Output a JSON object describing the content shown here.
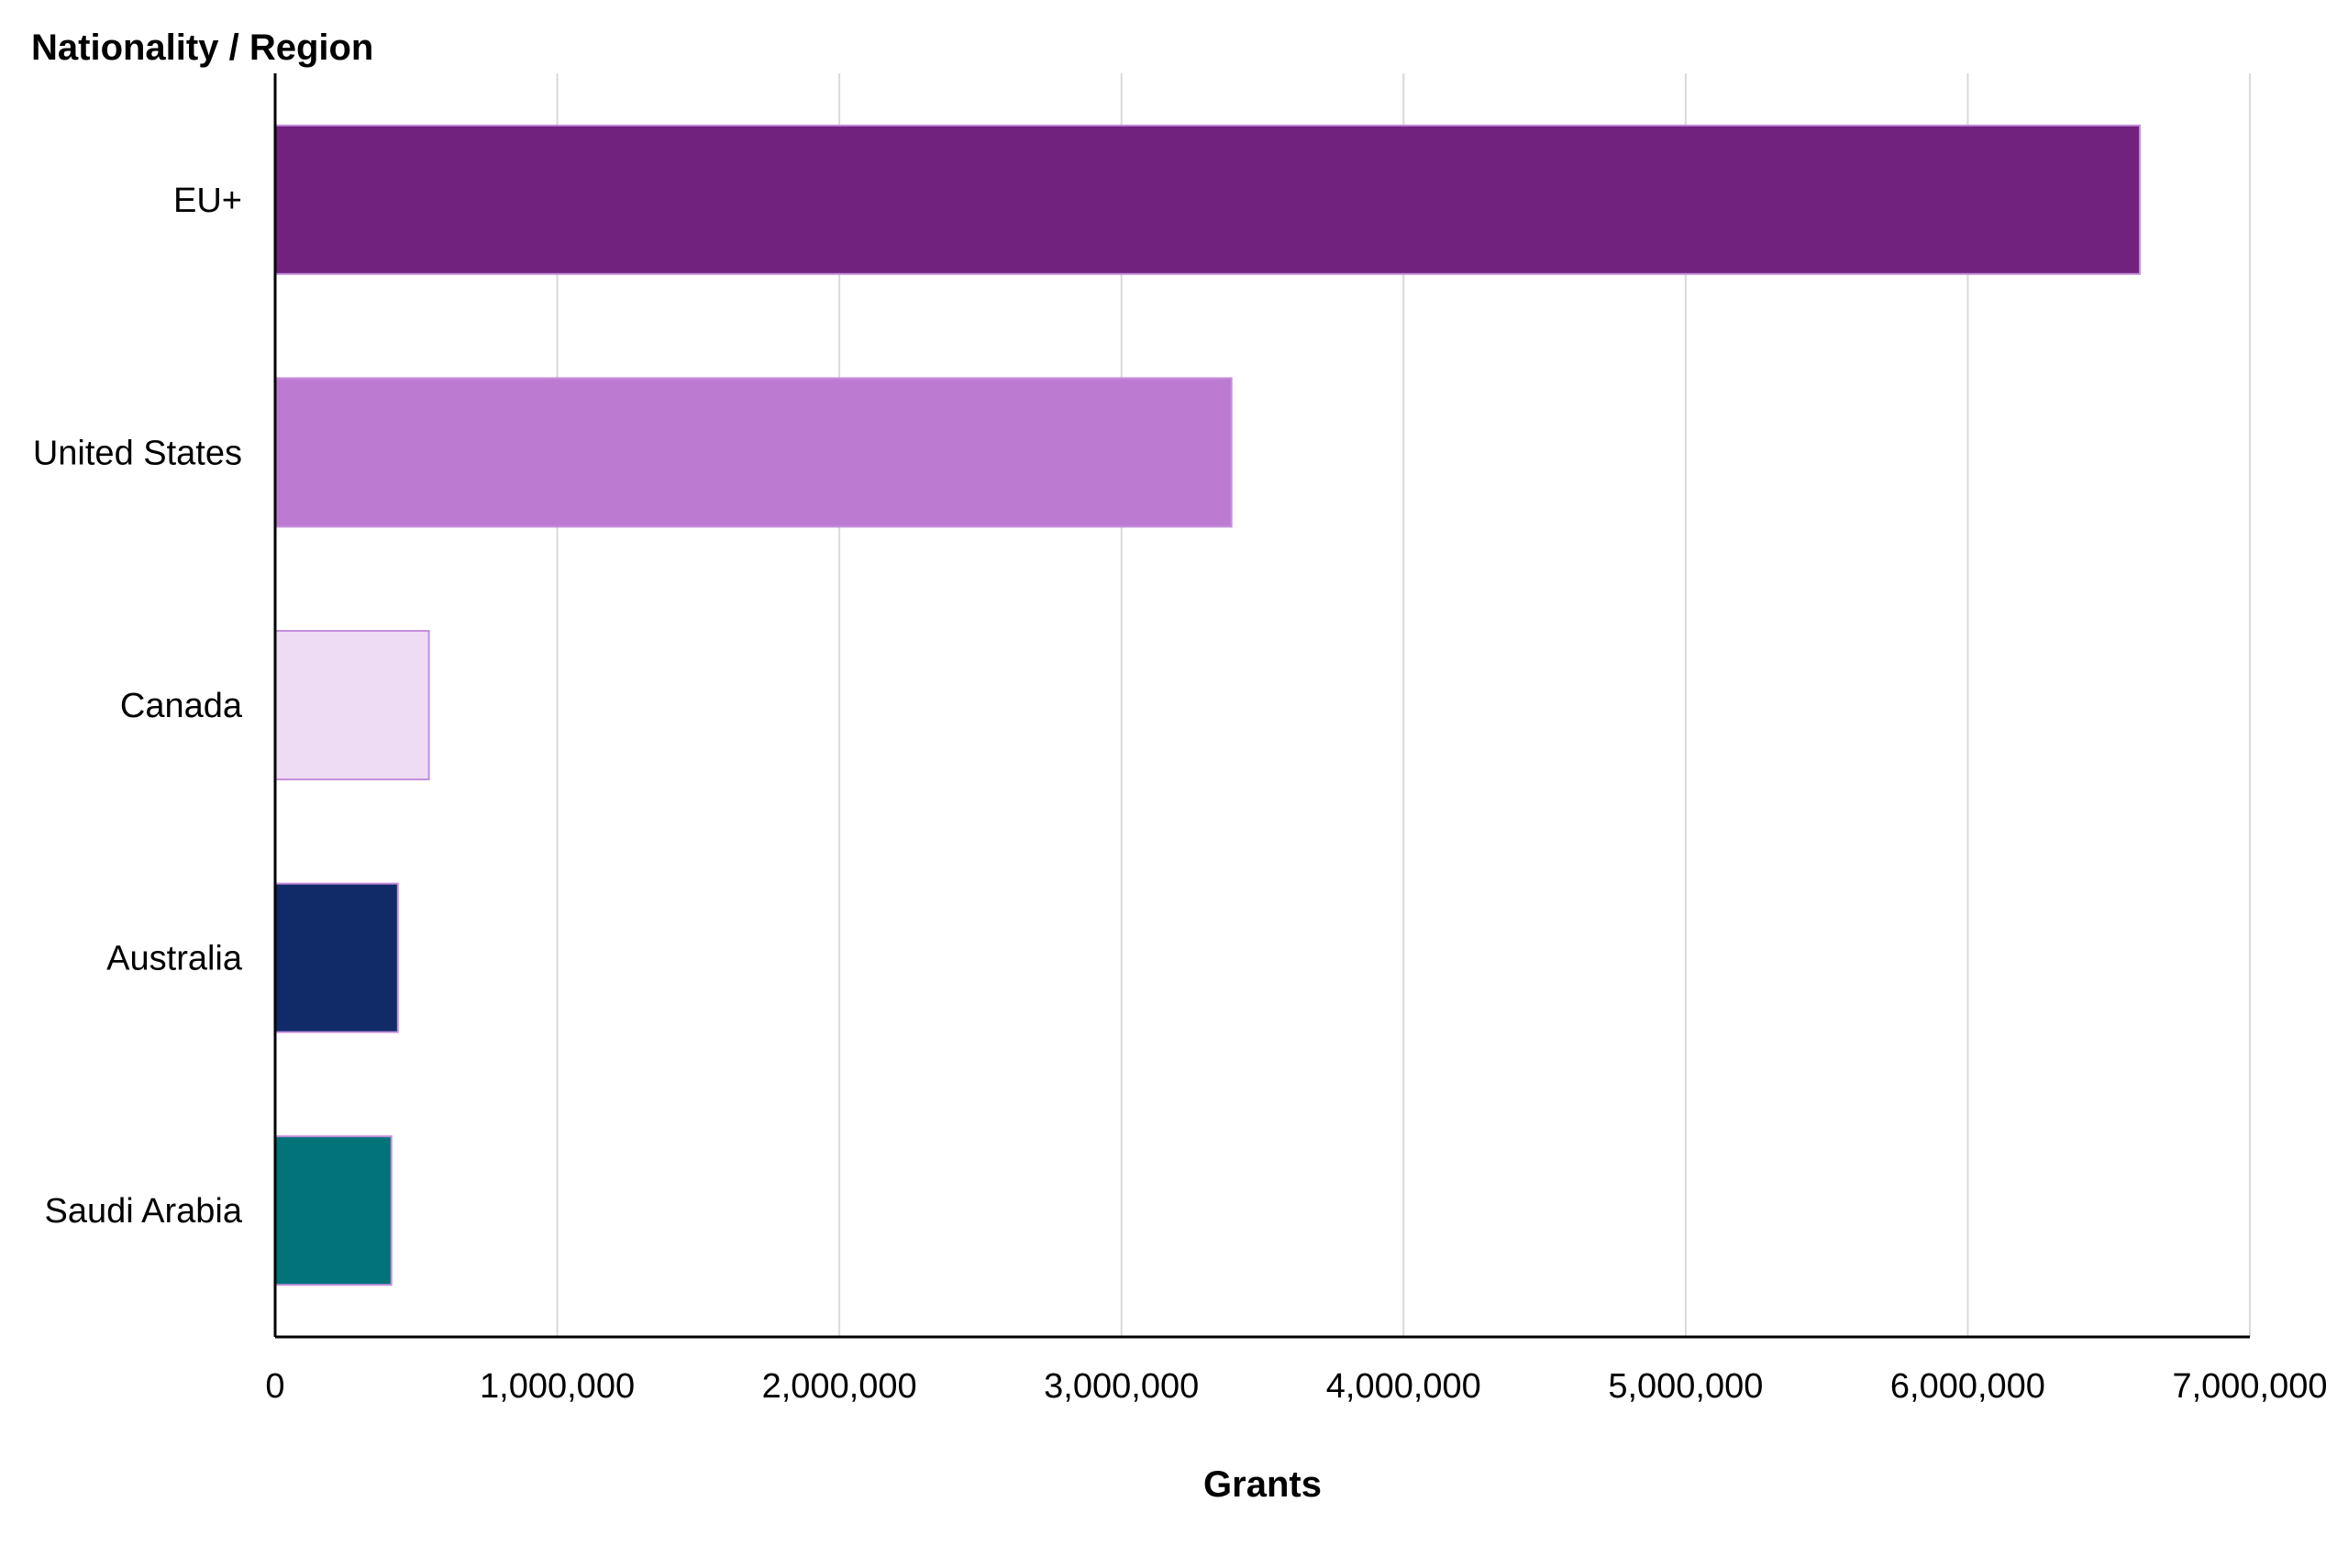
{
  "chart_data": {
    "type": "bar",
    "orientation": "horizontal",
    "ylabel": "Nationality / Region",
    "xlabel": "Grants",
    "categories": [
      "EU+",
      "United States",
      "Canada",
      "Australia",
      "Saudi Arabia"
    ],
    "values": [
      6610000,
      3390000,
      545000,
      435000,
      412000
    ],
    "bar_colors": [
      "#70227e",
      "#bc7bd1",
      "#eddcf3",
      "#112b69",
      "#027379"
    ],
    "xlim": [
      0,
      7000000
    ],
    "xticks": [
      0,
      1000000,
      2000000,
      3000000,
      4000000,
      5000000,
      6000000,
      7000000
    ],
    "xtick_labels": [
      "0",
      "1,000,000",
      "2,000,000",
      "3,000,000",
      "4,000,000",
      "5,000,000",
      "6,000,000",
      "7,000,000"
    ],
    "grid": true,
    "legend": "none"
  }
}
